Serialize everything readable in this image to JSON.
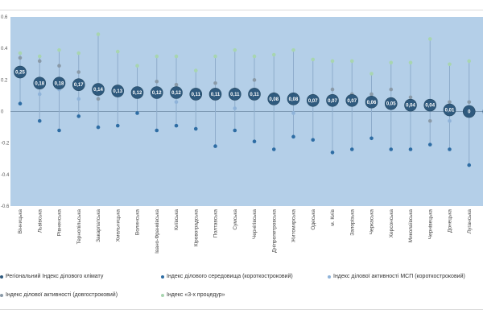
{
  "chart_data": {
    "type": "scatter",
    "title": "",
    "xlabel": "",
    "ylabel": "",
    "ylim": [
      -0.6,
      0.6
    ],
    "yticks": [
      "0.6",
      "0.4",
      "0.2",
      "0",
      "-0.2",
      "-0.4",
      "-0.6"
    ],
    "ytick_values": [
      0.6,
      0.4,
      0.2,
      0,
      -0.2,
      -0.4,
      -0.6
    ],
    "grid": false,
    "legend_position": "bottom",
    "categories": [
      "Вінницька",
      "Львівська",
      "Рівненська",
      "Тернопільська",
      "Закарпатська",
      "Хмельницька",
      "Волинська",
      "Івано-Франківська",
      "Київська",
      "Кіровоградська",
      "Полтавська",
      "Сумська",
      "Чернігівська",
      "Дніпропетровська",
      "Житомирська",
      "Одеська",
      "м. Київ",
      "Запорізька",
      "Черкаська",
      "Херсонська",
      "Миколаївська",
      "Чернівецька",
      "Донецька",
      "Луганська"
    ],
    "series": [
      {
        "name": "Регіональний Індекс ділового  клімату",
        "key": "climate",
        "color": "#2f5a7e",
        "labels": [
          "0,25",
          "0,18",
          "0,18",
          "0,17",
          "0,14",
          "0,13",
          "0,12",
          "0,12",
          "0,12",
          "0,11",
          "0,11",
          "0,11",
          "0,11",
          "0,08",
          "0,08",
          "0,07",
          "0,07",
          "0,07",
          "0,06",
          "0,05",
          "0,04",
          "0,04",
          "0,01",
          "0"
        ],
        "values": [
          0.25,
          0.18,
          0.18,
          0.17,
          0.14,
          0.13,
          0.12,
          0.12,
          0.12,
          0.11,
          0.11,
          0.11,
          0.11,
          0.08,
          0.08,
          0.07,
          0.07,
          0.07,
          0.06,
          0.05,
          0.04,
          0.04,
          0.01,
          0
        ]
      },
      {
        "name": "Індекс ділового середовища (короткостроковий)",
        "key": "env",
        "color": "#2e6da4",
        "values": [
          0.05,
          -0.06,
          -0.12,
          -0.03,
          -0.1,
          -0.09,
          -0.01,
          -0.12,
          -0.09,
          -0.11,
          -0.22,
          -0.12,
          -0.19,
          -0.24,
          -0.16,
          -0.18,
          -0.26,
          -0.24,
          -0.17,
          -0.24,
          -0.24,
          -0.21,
          -0.24,
          -0.34
        ]
      },
      {
        "name": "Індекс ділової активності МСП (короткостроковий)",
        "key": "msp",
        "color": "#8fb3d9",
        "values": [
          0.23,
          0.11,
          0.14,
          0.08,
          0.12,
          0.1,
          0.1,
          0.09,
          0.06,
          0.12,
          0.1,
          0.02,
          0.1,
          0.07,
          -0.01,
          0.05,
          0.05,
          0.05,
          0.04,
          0.02,
          0.02,
          0.01,
          -0.06,
          -0.03
        ]
      },
      {
        "name": "Індекс ділової активності (довгостроковий)",
        "key": "long",
        "color": "#8a9aa8",
        "values": [
          0.34,
          0.32,
          0.29,
          0.25,
          0.08,
          0.13,
          0.12,
          0.19,
          0.17,
          0.09,
          0.18,
          0.14,
          0.2,
          0.11,
          0.1,
          0.1,
          0.14,
          0.11,
          0.11,
          0.14,
          0.09,
          -0.06,
          0.06,
          0.06
        ]
      },
      {
        "name": "Індекс «3-х процедур»",
        "key": "proc",
        "color": "#a8d5b0",
        "values": [
          0.37,
          0.35,
          0.39,
          0.37,
          0.49,
          0.38,
          0.29,
          0.35,
          0.35,
          0.26,
          0.35,
          0.39,
          0.35,
          0.36,
          0.39,
          0.33,
          0.32,
          0.32,
          0.24,
          0.31,
          0.31,
          0.46,
          0.3,
          0.32
        ]
      }
    ]
  },
  "legend": {
    "items": [
      {
        "label": "Регіональний Індекс ділового  клімату",
        "color": "#2f5a7e"
      },
      {
        "label": "Індекс ділового середовища (короткостроковий)",
        "color": "#2e6da4"
      },
      {
        "label": "Індекс ділової активності МСП (короткостроковий)",
        "color": "#8fb3d9"
      },
      {
        "label": "Індекс ділової активності (довгостроковий)",
        "color": "#8a9aa8"
      },
      {
        "label": "Індекс «3-х процедур»",
        "color": "#a8d5b0"
      }
    ]
  },
  "colors": {
    "plot_background": "#b4cfe8",
    "zero_line": "#7f9bb5",
    "stem": "#8eaccb"
  }
}
